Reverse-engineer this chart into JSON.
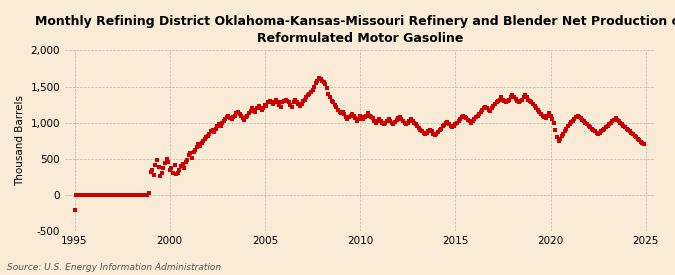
{
  "title": "Monthly Refining District Oklahoma-Kansas-Missouri Refinery and Blender Net Production of\nReformulated Motor Gasoline",
  "ylabel": "Thousand Barrels",
  "source": "Source: U.S. Energy Information Administration",
  "bg_color": "#faebd7",
  "marker_color": "#cc0000",
  "ylim": [
    -500,
    2000
  ],
  "xlim": [
    1994.5,
    2025.5
  ],
  "yticks": [
    -500,
    0,
    500,
    1000,
    1500,
    2000
  ],
  "xticks": [
    1995,
    2000,
    2005,
    2010,
    2015,
    2020,
    2025
  ],
  "data": [
    [
      1995.0,
      -200
    ],
    [
      1995.08,
      0
    ],
    [
      1995.17,
      0
    ],
    [
      1995.25,
      0
    ],
    [
      1995.33,
      0
    ],
    [
      1995.42,
      0
    ],
    [
      1995.5,
      0
    ],
    [
      1995.58,
      0
    ],
    [
      1995.67,
      0
    ],
    [
      1995.75,
      0
    ],
    [
      1995.83,
      0
    ],
    [
      1995.92,
      0
    ],
    [
      1996.0,
      0
    ],
    [
      1996.08,
      0
    ],
    [
      1996.17,
      0
    ],
    [
      1996.25,
      0
    ],
    [
      1996.33,
      0
    ],
    [
      1996.42,
      0
    ],
    [
      1996.5,
      0
    ],
    [
      1996.58,
      0
    ],
    [
      1996.67,
      0
    ],
    [
      1996.75,
      0
    ],
    [
      1996.83,
      0
    ],
    [
      1996.92,
      0
    ],
    [
      1997.0,
      0
    ],
    [
      1997.08,
      0
    ],
    [
      1997.17,
      0
    ],
    [
      1997.25,
      0
    ],
    [
      1997.33,
      0
    ],
    [
      1997.42,
      0
    ],
    [
      1997.5,
      0
    ],
    [
      1997.58,
      0
    ],
    [
      1997.67,
      0
    ],
    [
      1997.75,
      0
    ],
    [
      1997.83,
      0
    ],
    [
      1997.92,
      0
    ],
    [
      1998.0,
      0
    ],
    [
      1998.08,
      0
    ],
    [
      1998.17,
      0
    ],
    [
      1998.25,
      0
    ],
    [
      1998.33,
      0
    ],
    [
      1998.42,
      0
    ],
    [
      1998.5,
      0
    ],
    [
      1998.58,
      0
    ],
    [
      1998.67,
      0
    ],
    [
      1998.75,
      0
    ],
    [
      1998.83,
      0
    ],
    [
      1998.92,
      35
    ],
    [
      1999.0,
      320
    ],
    [
      1999.08,
      350
    ],
    [
      1999.17,
      280
    ],
    [
      1999.25,
      420
    ],
    [
      1999.33,
      480
    ],
    [
      1999.42,
      390
    ],
    [
      1999.5,
      260
    ],
    [
      1999.58,
      310
    ],
    [
      1999.67,
      370
    ],
    [
      1999.75,
      440
    ],
    [
      1999.83,
      500
    ],
    [
      1999.92,
      460
    ],
    [
      2000.0,
      350
    ],
    [
      2000.08,
      380
    ],
    [
      2000.17,
      300
    ],
    [
      2000.25,
      420
    ],
    [
      2000.33,
      290
    ],
    [
      2000.42,
      310
    ],
    [
      2000.5,
      350
    ],
    [
      2000.58,
      400
    ],
    [
      2000.67,
      430
    ],
    [
      2000.75,
      380
    ],
    [
      2000.83,
      460
    ],
    [
      2000.92,
      490
    ],
    [
      2001.0,
      550
    ],
    [
      2001.08,
      580
    ],
    [
      2001.17,
      520
    ],
    [
      2001.25,
      600
    ],
    [
      2001.33,
      630
    ],
    [
      2001.42,
      670
    ],
    [
      2001.5,
      700
    ],
    [
      2001.58,
      680
    ],
    [
      2001.67,
      720
    ],
    [
      2001.75,
      750
    ],
    [
      2001.83,
      780
    ],
    [
      2001.92,
      800
    ],
    [
      2002.0,
      820
    ],
    [
      2002.08,
      850
    ],
    [
      2002.17,
      880
    ],
    [
      2002.25,
      900
    ],
    [
      2002.33,
      870
    ],
    [
      2002.42,
      910
    ],
    [
      2002.5,
      950
    ],
    [
      2002.58,
      980
    ],
    [
      2002.67,
      960
    ],
    [
      2002.75,
      1000
    ],
    [
      2002.83,
      1020
    ],
    [
      2002.92,
      1050
    ],
    [
      2003.0,
      1080
    ],
    [
      2003.08,
      1100
    ],
    [
      2003.17,
      1070
    ],
    [
      2003.25,
      1050
    ],
    [
      2003.33,
      1080
    ],
    [
      2003.42,
      1100
    ],
    [
      2003.5,
      1130
    ],
    [
      2003.58,
      1150
    ],
    [
      2003.67,
      1120
    ],
    [
      2003.75,
      1090
    ],
    [
      2003.83,
      1060
    ],
    [
      2003.92,
      1040
    ],
    [
      2004.0,
      1080
    ],
    [
      2004.08,
      1100
    ],
    [
      2004.17,
      1130
    ],
    [
      2004.25,
      1160
    ],
    [
      2004.33,
      1200
    ],
    [
      2004.42,
      1180
    ],
    [
      2004.5,
      1150
    ],
    [
      2004.58,
      1200
    ],
    [
      2004.67,
      1230
    ],
    [
      2004.75,
      1210
    ],
    [
      2004.83,
      1180
    ],
    [
      2004.92,
      1200
    ],
    [
      2005.0,
      1250
    ],
    [
      2005.08,
      1230
    ],
    [
      2005.17,
      1280
    ],
    [
      2005.25,
      1300
    ],
    [
      2005.33,
      1280
    ],
    [
      2005.42,
      1260
    ],
    [
      2005.5,
      1290
    ],
    [
      2005.58,
      1310
    ],
    [
      2005.67,
      1280
    ],
    [
      2005.75,
      1250
    ],
    [
      2005.83,
      1220
    ],
    [
      2005.92,
      1280
    ],
    [
      2006.0,
      1300
    ],
    [
      2006.08,
      1320
    ],
    [
      2006.17,
      1300
    ],
    [
      2006.25,
      1280
    ],
    [
      2006.33,
      1250
    ],
    [
      2006.42,
      1220
    ],
    [
      2006.5,
      1280
    ],
    [
      2006.58,
      1310
    ],
    [
      2006.67,
      1290
    ],
    [
      2006.75,
      1260
    ],
    [
      2006.83,
      1230
    ],
    [
      2006.92,
      1260
    ],
    [
      2007.0,
      1300
    ],
    [
      2007.08,
      1320
    ],
    [
      2007.17,
      1350
    ],
    [
      2007.25,
      1380
    ],
    [
      2007.33,
      1400
    ],
    [
      2007.42,
      1420
    ],
    [
      2007.5,
      1450
    ],
    [
      2007.58,
      1500
    ],
    [
      2007.67,
      1550
    ],
    [
      2007.75,
      1580
    ],
    [
      2007.83,
      1620
    ],
    [
      2007.92,
      1600
    ],
    [
      2008.0,
      1580
    ],
    [
      2008.08,
      1560
    ],
    [
      2008.17,
      1530
    ],
    [
      2008.25,
      1480
    ],
    [
      2008.33,
      1400
    ],
    [
      2008.42,
      1350
    ],
    [
      2008.5,
      1300
    ],
    [
      2008.58,
      1280
    ],
    [
      2008.67,
      1250
    ],
    [
      2008.75,
      1220
    ],
    [
      2008.83,
      1180
    ],
    [
      2008.92,
      1150
    ],
    [
      2009.0,
      1130
    ],
    [
      2009.08,
      1150
    ],
    [
      2009.17,
      1120
    ],
    [
      2009.25,
      1080
    ],
    [
      2009.33,
      1050
    ],
    [
      2009.42,
      1080
    ],
    [
      2009.5,
      1100
    ],
    [
      2009.58,
      1120
    ],
    [
      2009.67,
      1090
    ],
    [
      2009.75,
      1060
    ],
    [
      2009.83,
      1030
    ],
    [
      2009.92,
      1050
    ],
    [
      2010.0,
      1100
    ],
    [
      2010.08,
      1080
    ],
    [
      2010.17,
      1050
    ],
    [
      2010.25,
      1080
    ],
    [
      2010.33,
      1100
    ],
    [
      2010.42,
      1130
    ],
    [
      2010.5,
      1100
    ],
    [
      2010.58,
      1080
    ],
    [
      2010.67,
      1060
    ],
    [
      2010.75,
      1030
    ],
    [
      2010.83,
      1000
    ],
    [
      2010.92,
      1020
    ],
    [
      2011.0,
      1050
    ],
    [
      2011.08,
      1030
    ],
    [
      2011.17,
      1000
    ],
    [
      2011.25,
      980
    ],
    [
      2011.33,
      1000
    ],
    [
      2011.42,
      1020
    ],
    [
      2011.5,
      1050
    ],
    [
      2011.58,
      1030
    ],
    [
      2011.67,
      1000
    ],
    [
      2011.75,
      980
    ],
    [
      2011.83,
      1010
    ],
    [
      2011.92,
      1040
    ],
    [
      2012.0,
      1060
    ],
    [
      2012.08,
      1080
    ],
    [
      2012.17,
      1050
    ],
    [
      2012.25,
      1030
    ],
    [
      2012.33,
      1000
    ],
    [
      2012.42,
      980
    ],
    [
      2012.5,
      1000
    ],
    [
      2012.58,
      1020
    ],
    [
      2012.67,
      1050
    ],
    [
      2012.75,
      1030
    ],
    [
      2012.83,
      1000
    ],
    [
      2012.92,
      980
    ],
    [
      2013.0,
      950
    ],
    [
      2013.08,
      930
    ],
    [
      2013.17,
      900
    ],
    [
      2013.25,
      880
    ],
    [
      2013.33,
      860
    ],
    [
      2013.42,
      840
    ],
    [
      2013.5,
      860
    ],
    [
      2013.58,
      880
    ],
    [
      2013.67,
      900
    ],
    [
      2013.75,
      880
    ],
    [
      2013.83,
      850
    ],
    [
      2013.92,
      830
    ],
    [
      2014.0,
      850
    ],
    [
      2014.08,
      870
    ],
    [
      2014.17,
      900
    ],
    [
      2014.25,
      920
    ],
    [
      2014.33,
      950
    ],
    [
      2014.42,
      970
    ],
    [
      2014.5,
      990
    ],
    [
      2014.58,
      1010
    ],
    [
      2014.67,
      980
    ],
    [
      2014.75,
      960
    ],
    [
      2014.83,
      940
    ],
    [
      2014.92,
      960
    ],
    [
      2015.0,
      980
    ],
    [
      2015.08,
      1000
    ],
    [
      2015.17,
      1020
    ],
    [
      2015.25,
      1050
    ],
    [
      2015.33,
      1080
    ],
    [
      2015.42,
      1100
    ],
    [
      2015.5,
      1080
    ],
    [
      2015.58,
      1060
    ],
    [
      2015.67,
      1040
    ],
    [
      2015.75,
      1020
    ],
    [
      2015.83,
      1000
    ],
    [
      2015.92,
      1020
    ],
    [
      2016.0,
      1050
    ],
    [
      2016.08,
      1080
    ],
    [
      2016.17,
      1100
    ],
    [
      2016.25,
      1120
    ],
    [
      2016.33,
      1150
    ],
    [
      2016.42,
      1180
    ],
    [
      2016.5,
      1200
    ],
    [
      2016.58,
      1220
    ],
    [
      2016.67,
      1200
    ],
    [
      2016.75,
      1180
    ],
    [
      2016.83,
      1160
    ],
    [
      2016.92,
      1200
    ],
    [
      2017.0,
      1230
    ],
    [
      2017.08,
      1260
    ],
    [
      2017.17,
      1280
    ],
    [
      2017.25,
      1300
    ],
    [
      2017.33,
      1320
    ],
    [
      2017.42,
      1350
    ],
    [
      2017.5,
      1320
    ],
    [
      2017.58,
      1300
    ],
    [
      2017.67,
      1280
    ],
    [
      2017.75,
      1300
    ],
    [
      2017.83,
      1320
    ],
    [
      2017.92,
      1350
    ],
    [
      2018.0,
      1380
    ],
    [
      2018.08,
      1350
    ],
    [
      2018.17,
      1330
    ],
    [
      2018.25,
      1300
    ],
    [
      2018.33,
      1280
    ],
    [
      2018.42,
      1300
    ],
    [
      2018.5,
      1320
    ],
    [
      2018.58,
      1350
    ],
    [
      2018.67,
      1380
    ],
    [
      2018.75,
      1350
    ],
    [
      2018.83,
      1320
    ],
    [
      2018.92,
      1300
    ],
    [
      2019.0,
      1280
    ],
    [
      2019.08,
      1260
    ],
    [
      2019.17,
      1230
    ],
    [
      2019.25,
      1200
    ],
    [
      2019.33,
      1180
    ],
    [
      2019.42,
      1150
    ],
    [
      2019.5,
      1120
    ],
    [
      2019.58,
      1100
    ],
    [
      2019.67,
      1080
    ],
    [
      2019.75,
      1060
    ],
    [
      2019.83,
      1100
    ],
    [
      2019.92,
      1130
    ],
    [
      2020.0,
      1100
    ],
    [
      2020.08,
      1050
    ],
    [
      2020.17,
      1000
    ],
    [
      2020.25,
      900
    ],
    [
      2020.33,
      800
    ],
    [
      2020.42,
      750
    ],
    [
      2020.5,
      780
    ],
    [
      2020.58,
      820
    ],
    [
      2020.67,
      850
    ],
    [
      2020.75,
      880
    ],
    [
      2020.83,
      920
    ],
    [
      2020.92,
      950
    ],
    [
      2021.0,
      980
    ],
    [
      2021.08,
      1010
    ],
    [
      2021.17,
      1030
    ],
    [
      2021.25,
      1050
    ],
    [
      2021.33,
      1080
    ],
    [
      2021.42,
      1100
    ],
    [
      2021.5,
      1080
    ],
    [
      2021.58,
      1060
    ],
    [
      2021.67,
      1040
    ],
    [
      2021.75,
      1020
    ],
    [
      2021.83,
      1000
    ],
    [
      2021.92,
      980
    ],
    [
      2022.0,
      960
    ],
    [
      2022.08,
      940
    ],
    [
      2022.17,
      920
    ],
    [
      2022.25,
      900
    ],
    [
      2022.33,
      880
    ],
    [
      2022.42,
      860
    ],
    [
      2022.5,
      840
    ],
    [
      2022.58,
      860
    ],
    [
      2022.67,
      880
    ],
    [
      2022.75,
      900
    ],
    [
      2022.83,
      920
    ],
    [
      2022.92,
      940
    ],
    [
      2023.0,
      960
    ],
    [
      2023.08,
      980
    ],
    [
      2023.17,
      1000
    ],
    [
      2023.25,
      1020
    ],
    [
      2023.33,
      1040
    ],
    [
      2023.42,
      1060
    ],
    [
      2023.5,
      1040
    ],
    [
      2023.58,
      1020
    ],
    [
      2023.67,
      1000
    ],
    [
      2023.75,
      980
    ],
    [
      2023.83,
      960
    ],
    [
      2023.92,
      940
    ],
    [
      2024.0,
      920
    ],
    [
      2024.08,
      900
    ],
    [
      2024.17,
      880
    ],
    [
      2024.25,
      860
    ],
    [
      2024.33,
      840
    ],
    [
      2024.42,
      820
    ],
    [
      2024.5,
      800
    ],
    [
      2024.58,
      780
    ],
    [
      2024.67,
      760
    ],
    [
      2024.75,
      740
    ],
    [
      2024.83,
      720
    ],
    [
      2024.92,
      700
    ]
  ]
}
